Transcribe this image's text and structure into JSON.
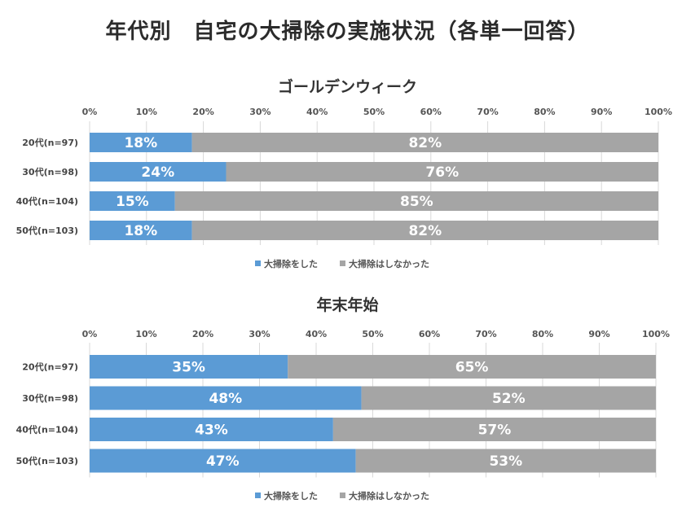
{
  "title": "年代別　自宅の大掃除の実施状況（各単一回答）",
  "colors": {
    "did": "#5b9bd5",
    "did_not": "#a5a5a5"
  },
  "chart_data": [
    {
      "type": "bar",
      "orientation": "horizontal",
      "stacked": true,
      "title": "ゴールデンウィーク",
      "categories": [
        "20代(n=97)",
        "30代(n=98)",
        "40代(n=104)",
        "50代(n=103)"
      ],
      "series": [
        {
          "name": "大掃除をした",
          "values": [
            18,
            24,
            15,
            18
          ],
          "labels": [
            "18%",
            "24%",
            "15%",
            "18%"
          ]
        },
        {
          "name": "大掃除はしなかった",
          "values": [
            82,
            76,
            85,
            82
          ],
          "labels": [
            "82%",
            "76%",
            "85%",
            "82%"
          ]
        }
      ],
      "xlim": [
        0,
        100
      ],
      "ticks": [
        "0%",
        "10%",
        "20%",
        "30%",
        "40%",
        "50%",
        "60%",
        "70%",
        "80%",
        "90%",
        "100%"
      ],
      "grid": true,
      "legend_position": "bottom"
    },
    {
      "type": "bar",
      "orientation": "horizontal",
      "stacked": true,
      "title": "年末年始",
      "categories": [
        "20代(n=97)",
        "30代(n=98)",
        "40代(n=104)",
        "50代(n=103)"
      ],
      "series": [
        {
          "name": "大掃除をした",
          "values": [
            35,
            48,
            43,
            47
          ],
          "labels": [
            "35%",
            "48%",
            "43%",
            "47%"
          ]
        },
        {
          "name": "大掃除はしなかった",
          "values": [
            65,
            52,
            57,
            53
          ],
          "labels": [
            "65%",
            "52%",
            "57%",
            "53%"
          ]
        }
      ],
      "xlim": [
        0,
        100
      ],
      "ticks": [
        "0%",
        "10%",
        "20%",
        "30%",
        "40%",
        "50%",
        "60%",
        "70%",
        "80%",
        "90%",
        "100%"
      ],
      "grid": true,
      "legend_position": "bottom"
    }
  ]
}
